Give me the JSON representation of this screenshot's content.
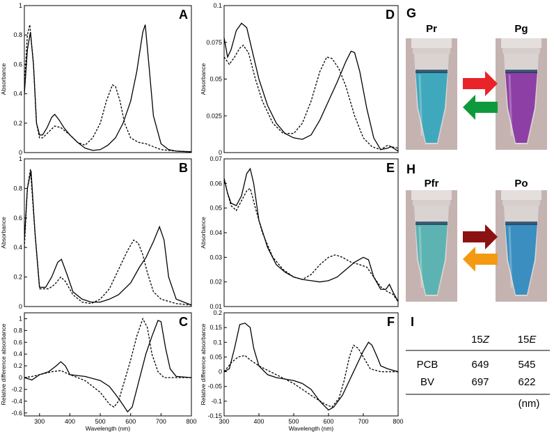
{
  "chart_data": [
    {
      "type": "line",
      "panel": "A",
      "ylabel": "Absorbance",
      "xlim": [
        250,
        800
      ],
      "ylim": [
        0,
        1
      ],
      "yticks": [
        0,
        0.2,
        0.4,
        0.6,
        0.8,
        1
      ],
      "series": [
        {
          "color": "#000000",
          "dash": false,
          "x": [
            250,
            260,
            270,
            280,
            290,
            300,
            310,
            325,
            340,
            350,
            365,
            380,
            400,
            425,
            450,
            475,
            500,
            525,
            550,
            575,
            600,
            620,
            640,
            648,
            660,
            675,
            700,
            725,
            750,
            800
          ],
          "values": [
            0.4,
            0.7,
            0.82,
            0.6,
            0.2,
            0.12,
            0.12,
            0.17,
            0.24,
            0.26,
            0.22,
            0.17,
            0.12,
            0.07,
            0.03,
            0.015,
            0.02,
            0.05,
            0.1,
            0.2,
            0.35,
            0.55,
            0.82,
            0.87,
            0.6,
            0.25,
            0.06,
            0.02,
            0.01,
            0.005
          ]
        },
        {
          "color": "#000000",
          "dash": true,
          "x": [
            250,
            260,
            268,
            280,
            290,
            300,
            310,
            330,
            350,
            370,
            400,
            425,
            450,
            475,
            500,
            520,
            540,
            550,
            565,
            580,
            600,
            625,
            650,
            675,
            700,
            750,
            800
          ],
          "values": [
            0.45,
            0.8,
            0.87,
            0.6,
            0.2,
            0.1,
            0.1,
            0.14,
            0.18,
            0.17,
            0.12,
            0.07,
            0.05,
            0.1,
            0.2,
            0.35,
            0.46,
            0.45,
            0.35,
            0.2,
            0.1,
            0.07,
            0.06,
            0.04,
            0.02,
            0.01,
            0.005
          ]
        }
      ]
    },
    {
      "type": "line",
      "panel": "B",
      "ylabel": "Absorbance",
      "xlim": [
        250,
        800
      ],
      "ylim": [
        0,
        1
      ],
      "yticks": [
        0,
        0.2,
        0.4,
        0.6,
        0.8,
        1
      ],
      "series": [
        {
          "color": "#000000",
          "dash": false,
          "x": [
            250,
            260,
            272,
            285,
            300,
            320,
            340,
            360,
            372,
            390,
            410,
            440,
            470,
            500,
            530,
            560,
            600,
            630,
            650,
            675,
            695,
            710,
            725,
            750,
            800
          ],
          "values": [
            0.45,
            0.8,
            0.92,
            0.5,
            0.13,
            0.13,
            0.2,
            0.3,
            0.32,
            0.22,
            0.1,
            0.05,
            0.03,
            0.03,
            0.05,
            0.08,
            0.16,
            0.27,
            0.33,
            0.44,
            0.54,
            0.45,
            0.2,
            0.05,
            0.01
          ]
        },
        {
          "color": "#000000",
          "dash": true,
          "x": [
            250,
            260,
            270,
            285,
            300,
            330,
            350,
            370,
            385,
            410,
            440,
            470,
            500,
            530,
            560,
            590,
            610,
            625,
            640,
            655,
            675,
            700,
            750,
            800
          ],
          "values": [
            0.4,
            0.8,
            0.93,
            0.5,
            0.12,
            0.12,
            0.15,
            0.2,
            0.17,
            0.08,
            0.03,
            0.02,
            0.05,
            0.12,
            0.25,
            0.38,
            0.45,
            0.43,
            0.35,
            0.23,
            0.1,
            0.05,
            0.02,
            0.01
          ]
        }
      ]
    },
    {
      "type": "line",
      "panel": "C",
      "ylabel": "Relative difference absorbance",
      "xlabel": "Wavelength (nm)",
      "xlim": [
        250,
        800
      ],
      "xticks": [
        300,
        400,
        500,
        600,
        700,
        800
      ],
      "ylim": [
        -0.65,
        1.1
      ],
      "yticks": [
        -0.6,
        -0.4,
        -0.2,
        0,
        0.2,
        0.4,
        0.6,
        0.8,
        1
      ],
      "series": [
        {
          "color": "#000000",
          "dash": false,
          "x": [
            250,
            275,
            300,
            330,
            355,
            370,
            385,
            400,
            450,
            500,
            530,
            560,
            590,
            605,
            625,
            650,
            670,
            690,
            700,
            715,
            730,
            750,
            800
          ],
          "values": [
            0,
            -0.04,
            0.05,
            0.1,
            0.2,
            0.27,
            0.2,
            0.05,
            0.02,
            -0.05,
            -0.15,
            -0.35,
            -0.58,
            -0.5,
            -0.1,
            0.4,
            0.7,
            0.97,
            0.95,
            0.5,
            0.15,
            0.02,
            0
          ]
        },
        {
          "color": "#000000",
          "dash": true,
          "x": [
            250,
            275,
            300,
            340,
            370,
            400,
            450,
            500,
            530,
            545,
            560,
            580,
            600,
            620,
            640,
            655,
            670,
            690,
            710,
            750,
            800
          ],
          "values": [
            0,
            0.02,
            0.05,
            0.1,
            0.12,
            0.05,
            -0.05,
            -0.25,
            -0.45,
            -0.5,
            -0.4,
            -0.05,
            0.3,
            0.7,
            1.0,
            0.85,
            0.4,
            0.1,
            0,
            0,
            0
          ]
        }
      ]
    },
    {
      "type": "line",
      "panel": "D",
      "ylabel": "Absorbance",
      "xlim": [
        300,
        800
      ],
      "ylim": [
        0,
        0.1
      ],
      "yticks": [
        0,
        0.025,
        0.05,
        0.075,
        0.1
      ],
      "series": [
        {
          "color": "#000000",
          "dash": false,
          "x": [
            300,
            310,
            320,
            335,
            350,
            365,
            380,
            400,
            425,
            450,
            475,
            500,
            525,
            550,
            575,
            600,
            625,
            650,
            665,
            675,
            690,
            710,
            730,
            750,
            770,
            780,
            800
          ],
          "values": [
            0.078,
            0.065,
            0.07,
            0.083,
            0.088,
            0.085,
            0.07,
            0.05,
            0.032,
            0.02,
            0.013,
            0.01,
            0.009,
            0.012,
            0.022,
            0.035,
            0.048,
            0.062,
            0.069,
            0.068,
            0.055,
            0.03,
            0.01,
            0.002,
            0.003,
            0.004,
            0.001
          ]
        },
        {
          "color": "#000000",
          "dash": true,
          "x": [
            300,
            315,
            330,
            345,
            355,
            370,
            390,
            410,
            440,
            470,
            500,
            525,
            550,
            575,
            595,
            610,
            630,
            650,
            675,
            700,
            725,
            750,
            770,
            780,
            800
          ],
          "values": [
            0.065,
            0.06,
            0.065,
            0.071,
            0.073,
            0.068,
            0.05,
            0.035,
            0.02,
            0.013,
            0.013,
            0.02,
            0.035,
            0.055,
            0.065,
            0.064,
            0.057,
            0.045,
            0.025,
            0.01,
            0.004,
            0.002,
            0.005,
            0.004,
            0.003
          ]
        }
      ]
    },
    {
      "type": "line",
      "panel": "E",
      "ylabel": "Absorbance",
      "xlim": [
        300,
        800
      ],
      "ylim": [
        0.01,
        0.07
      ],
      "yticks": [
        0.01,
        0.02,
        0.03,
        0.04,
        0.05,
        0.06,
        0.07
      ],
      "series": [
        {
          "color": "#000000",
          "dash": false,
          "x": [
            300,
            310,
            320,
            335,
            350,
            365,
            375,
            385,
            400,
            425,
            450,
            475,
            500,
            525,
            550,
            575,
            600,
            625,
            650,
            675,
            700,
            715,
            730,
            750,
            765,
            775,
            785,
            800
          ],
          "values": [
            0.062,
            0.056,
            0.052,
            0.051,
            0.055,
            0.064,
            0.066,
            0.06,
            0.045,
            0.034,
            0.027,
            0.024,
            0.022,
            0.021,
            0.0205,
            0.02,
            0.0205,
            0.022,
            0.025,
            0.028,
            0.03,
            0.029,
            0.022,
            0.017,
            0.017,
            0.019,
            0.016,
            0.012
          ]
        },
        {
          "color": "#000000",
          "dash": true,
          "x": [
            300,
            310,
            320,
            335,
            350,
            365,
            375,
            390,
            410,
            440,
            470,
            500,
            525,
            550,
            575,
            600,
            620,
            640,
            665,
            690,
            710,
            730,
            750,
            770,
            785,
            800
          ],
          "values": [
            0.062,
            0.056,
            0.051,
            0.049,
            0.053,
            0.057,
            0.058,
            0.05,
            0.04,
            0.03,
            0.025,
            0.022,
            0.021,
            0.023,
            0.027,
            0.03,
            0.031,
            0.03,
            0.028,
            0.027,
            0.026,
            0.022,
            0.018,
            0.016,
            0.015,
            0.012
          ]
        }
      ]
    },
    {
      "type": "line",
      "panel": "F",
      "ylabel": "Relative difference absorbance",
      "xlabel": "Wavelength (nm)",
      "xlim": [
        300,
        800
      ],
      "xticks": [
        300,
        400,
        500,
        600,
        700,
        800
      ],
      "ylim": [
        -0.15,
        0.2
      ],
      "yticks": [
        -0.15,
        -0.1,
        -0.05,
        0,
        0.05,
        0.1,
        0.15,
        0.2
      ],
      "series": [
        {
          "color": "#000000",
          "dash": false,
          "x": [
            300,
            315,
            330,
            345,
            360,
            375,
            385,
            400,
            425,
            450,
            475,
            500,
            525,
            550,
            575,
            600,
            615,
            640,
            660,
            680,
            700,
            715,
            725,
            740,
            750,
            770,
            800
          ],
          "values": [
            0,
            0.01,
            0.08,
            0.16,
            0.165,
            0.15,
            0.08,
            0.02,
            -0.01,
            -0.02,
            -0.025,
            -0.03,
            -0.04,
            -0.06,
            -0.1,
            -0.13,
            -0.12,
            -0.08,
            -0.03,
            0.02,
            0.07,
            0.1,
            0.09,
            0.05,
            0.02,
            0.01,
            0
          ]
        },
        {
          "color": "#000000",
          "dash": true,
          "x": [
            300,
            320,
            340,
            360,
            375,
            400,
            450,
            500,
            550,
            590,
            610,
            630,
            645,
            660,
            672,
            685,
            700,
            720,
            750,
            800
          ],
          "values": [
            0,
            0.03,
            0.05,
            0.055,
            0.04,
            0.02,
            -0.01,
            -0.04,
            -0.08,
            -0.11,
            -0.12,
            -0.09,
            -0.03,
            0.05,
            0.09,
            0.08,
            0.05,
            0.01,
            0,
            0
          ]
        }
      ]
    }
  ],
  "photos": {
    "g": {
      "panel": "G",
      "left": "Pr",
      "right": "Pg"
    },
    "h": {
      "panel": "H",
      "left": "Pfr",
      "right": "Po"
    }
  },
  "table": {
    "panel": "I",
    "headers": [
      {
        "num": "15",
        "isomer": "Z"
      },
      {
        "num": "15",
        "isomer": "E"
      }
    ],
    "rows": [
      [
        "PCB",
        649,
        545
      ],
      [
        "BV",
        697,
        622
      ]
    ],
    "unit": "(nm)"
  }
}
